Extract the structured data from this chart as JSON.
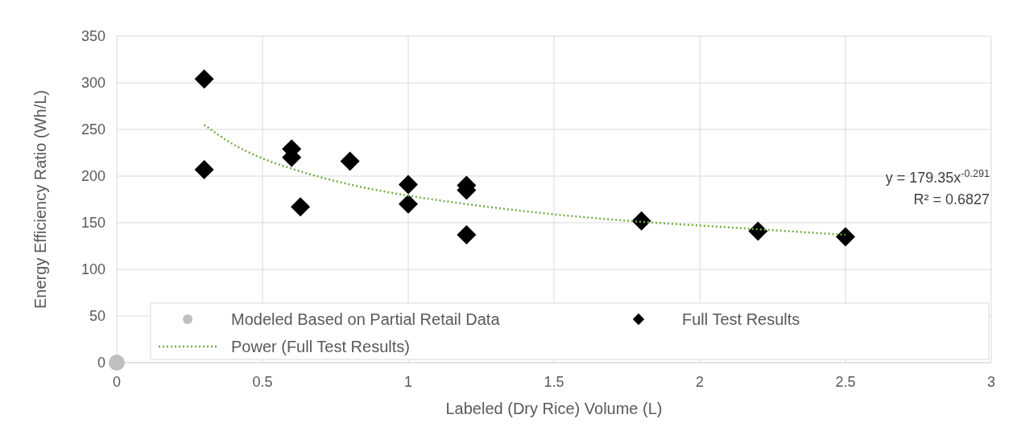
{
  "chart_data": {
    "type": "scatter",
    "xlabel": "Labeled (Dry Rice) Volume (L)",
    "ylabel": "Energy Efficiency Ratio (Wh/L)",
    "xlim": [
      0,
      3
    ],
    "xticks": [
      0,
      0.5,
      1,
      1.5,
      2,
      2.5,
      3
    ],
    "ylim": [
      0,
      350
    ],
    "yticks": [
      0,
      50,
      100,
      150,
      200,
      250,
      300,
      350
    ],
    "grid": true,
    "legend": "bottom",
    "series": [
      {
        "name": "Modeled Based on Partial Retail Data",
        "color": "#bfbfbf",
        "marker": "circle",
        "x": [
          0
        ],
        "values": [
          0
        ]
      },
      {
        "name": "Full Test Results",
        "color": "#000000",
        "marker": "diamond",
        "x": [
          0.3,
          0.3,
          0.6,
          0.6,
          0.63,
          0.8,
          1.0,
          1.0,
          1.2,
          1.2,
          1.2,
          1.8,
          2.2,
          2.5
        ],
        "values": [
          304,
          207,
          229,
          220,
          167,
          216,
          191,
          170,
          190,
          185,
          137,
          152,
          141,
          135
        ]
      },
      {
        "name": "Power (Full Test Results)",
        "type": "line",
        "color": "#70ad47",
        "marker": "none",
        "line_style": "dotted",
        "x": [
          0.3,
          0.4,
          0.5,
          0.6,
          0.8,
          1.0,
          1.2,
          1.5,
          1.8,
          2.0,
          2.2,
          2.5
        ],
        "values": [
          255,
          234,
          219,
          208,
          191,
          179,
          170,
          159,
          151,
          147,
          143,
          137
        ]
      }
    ],
    "annotations": [
      "y = 179.35x$^{-0.291}$",
      "R² = 0.6827"
    ]
  }
}
